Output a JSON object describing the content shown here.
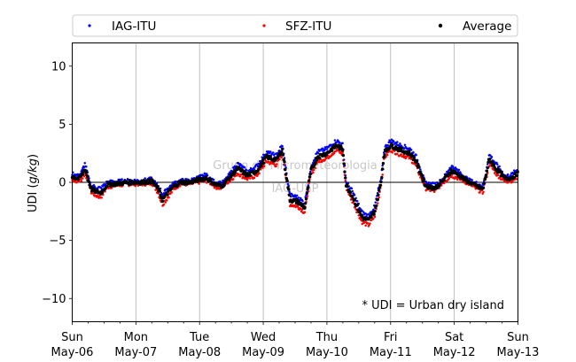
{
  "chart_data": {
    "type": "scatter",
    "ylabel_prefix": "UDI (",
    "ylabel_unit": "g/kg",
    "ylabel_suffix": ")",
    "ylim": [
      -12,
      12
    ],
    "yticks": [
      10,
      5,
      0,
      -5,
      -10
    ],
    "ytick_labels": [
      "10",
      "5",
      "0",
      "−5",
      "−10"
    ],
    "xlim": [
      0,
      7
    ],
    "xticks": [
      {
        "day": "Sun",
        "date": "May-06"
      },
      {
        "day": "Mon",
        "date": "May-07"
      },
      {
        "day": "Tue",
        "date": "May-08"
      },
      {
        "day": "Wed",
        "date": "May-09"
      },
      {
        "day": "Thu",
        "date": "May-10"
      },
      {
        "day": "Fri",
        "date": "May-11"
      },
      {
        "day": "Sat",
        "date": "May-12"
      },
      {
        "day": "Sun",
        "date": "May-13"
      }
    ],
    "grid": "vertical",
    "legend_position": "top",
    "annotation": "* UDI = Urban dry island",
    "watermark": [
      "Grupo de Micrometeorologia",
      "IAG-USP"
    ],
    "series": [
      {
        "name": "IAG-ITU",
        "color": "#0000ff",
        "offset": 0.4
      },
      {
        "name": "SFZ-ITU",
        "color": "#ff0000",
        "offset": -0.4
      },
      {
        "name": "Average",
        "color": "#000000",
        "offset": 0
      }
    ],
    "average_keypoints": [
      [
        0.0,
        0.5
      ],
      [
        0.1,
        0.3
      ],
      [
        0.15,
        0.6
      ],
      [
        0.2,
        1.2
      ],
      [
        0.25,
        0.3
      ],
      [
        0.3,
        -0.6
      ],
      [
        0.38,
        -0.8
      ],
      [
        0.45,
        -0.9
      ],
      [
        0.55,
        -0.2
      ],
      [
        0.7,
        -0.1
      ],
      [
        0.9,
        0.0
      ],
      [
        1.1,
        0.0
      ],
      [
        1.25,
        0.1
      ],
      [
        1.35,
        -0.6
      ],
      [
        1.42,
        -1.5
      ],
      [
        1.5,
        -0.9
      ],
      [
        1.6,
        -0.3
      ],
      [
        1.7,
        0.0
      ],
      [
        1.85,
        0.0
      ],
      [
        2.1,
        0.4
      ],
      [
        2.25,
        -0.2
      ],
      [
        2.35,
        -0.3
      ],
      [
        2.45,
        0.3
      ],
      [
        2.6,
        1.2
      ],
      [
        2.75,
        0.6
      ],
      [
        2.9,
        1.0
      ],
      [
        3.05,
        2.2
      ],
      [
        3.2,
        1.9
      ],
      [
        3.3,
        2.8
      ],
      [
        3.35,
        1.0
      ],
      [
        3.42,
        -1.5
      ],
      [
        3.55,
        -1.7
      ],
      [
        3.65,
        -2.2
      ],
      [
        3.75,
        1.0
      ],
      [
        3.85,
        2.2
      ],
      [
        4.0,
        2.5
      ],
      [
        4.15,
        3.2
      ],
      [
        4.25,
        2.8
      ],
      [
        4.3,
        -0.2
      ],
      [
        4.4,
        -1.2
      ],
      [
        4.55,
        -3.0
      ],
      [
        4.65,
        -3.3
      ],
      [
        4.75,
        -2.5
      ],
      [
        4.85,
        0.0
      ],
      [
        4.9,
        2.5
      ],
      [
        5.0,
        3.2
      ],
      [
        5.15,
        2.8
      ],
      [
        5.3,
        2.5
      ],
      [
        5.4,
        1.8
      ],
      [
        5.55,
        -0.3
      ],
      [
        5.7,
        -0.5
      ],
      [
        5.85,
        0.3
      ],
      [
        5.95,
        1.0
      ],
      [
        6.05,
        0.7
      ],
      [
        6.15,
        0.3
      ],
      [
        6.3,
        -0.2
      ],
      [
        6.45,
        -0.6
      ],
      [
        6.55,
        2.0
      ],
      [
        6.65,
        1.2
      ],
      [
        6.8,
        0.3
      ],
      [
        6.9,
        0.4
      ],
      [
        7.0,
        0.8
      ]
    ]
  }
}
